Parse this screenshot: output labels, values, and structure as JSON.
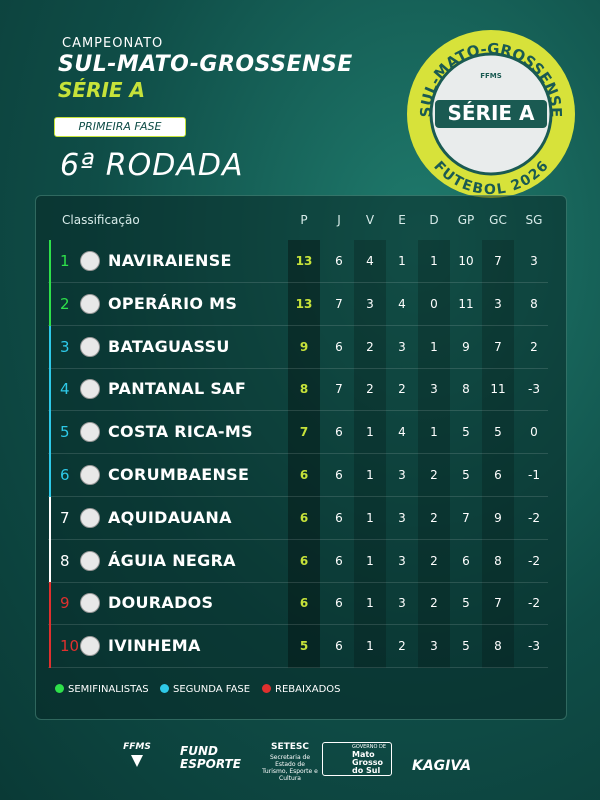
{
  "header": {
    "pretitle": "CAMPEONATO",
    "title": "SUL-MATO-GROSSENSE",
    "subtitle": "SÉRIE A",
    "phase": "PRIMEIRA FASE",
    "round": "6ª RODADA"
  },
  "badge": {
    "arc_top": "SUL-MATO-GROSSENSE",
    "center": "SÉRIE A",
    "arc_bottom": "FUTEBOL 2026",
    "mark": "FFMS"
  },
  "table": {
    "columns": [
      "Classificação",
      "P",
      "J",
      "V",
      "E",
      "D",
      "GP",
      "GC",
      "SG"
    ],
    "rows": [
      [
        1,
        "NAVIRAIENSE",
        13,
        6,
        4,
        1,
        1,
        10,
        7,
        3
      ],
      [
        2,
        "OPERÁRIO MS",
        13,
        7,
        3,
        4,
        0,
        11,
        3,
        8
      ],
      [
        3,
        "BATAGUASSU",
        9,
        6,
        2,
        3,
        1,
        9,
        7,
        2
      ],
      [
        4,
        "PANTANAL SAF",
        8,
        7,
        2,
        2,
        3,
        8,
        11,
        -3
      ],
      [
        5,
        "COSTA RICA-MS",
        7,
        6,
        1,
        4,
        1,
        5,
        5,
        0
      ],
      [
        6,
        "CORUMBAENSE",
        6,
        6,
        1,
        3,
        2,
        5,
        6,
        -1
      ],
      [
        7,
        "AQUIDAUANA",
        6,
        6,
        1,
        3,
        2,
        7,
        9,
        -2
      ],
      [
        8,
        "ÁGUIA NEGRA",
        6,
        6,
        1,
        3,
        2,
        6,
        8,
        -2
      ],
      [
        9,
        "DOURADOS",
        6,
        6,
        1,
        3,
        2,
        5,
        7,
        -2
      ],
      [
        10,
        "IVINHEMA",
        5,
        6,
        1,
        2,
        3,
        5,
        8,
        -3
      ]
    ]
  },
  "legend": [
    {
      "label": "SEMIFINALISTAS",
      "color": "#2ee04a"
    },
    {
      "label": "SEGUNDA FASE",
      "color": "#2ec9e8"
    },
    {
      "label": "REBAIXADOS",
      "color": "#e0302e"
    }
  ],
  "footer": {
    "ffms": "FFMS",
    "fund": "FUND ESPORTE",
    "setesc": "SETESC",
    "setesc_sub": "Secretaria de Estado de Turismo, Esporte e Cultura",
    "gov_top": "GOVERNO DE",
    "gov": "Mato Grosso do Sul",
    "kagiva": "KAGIVA"
  }
}
